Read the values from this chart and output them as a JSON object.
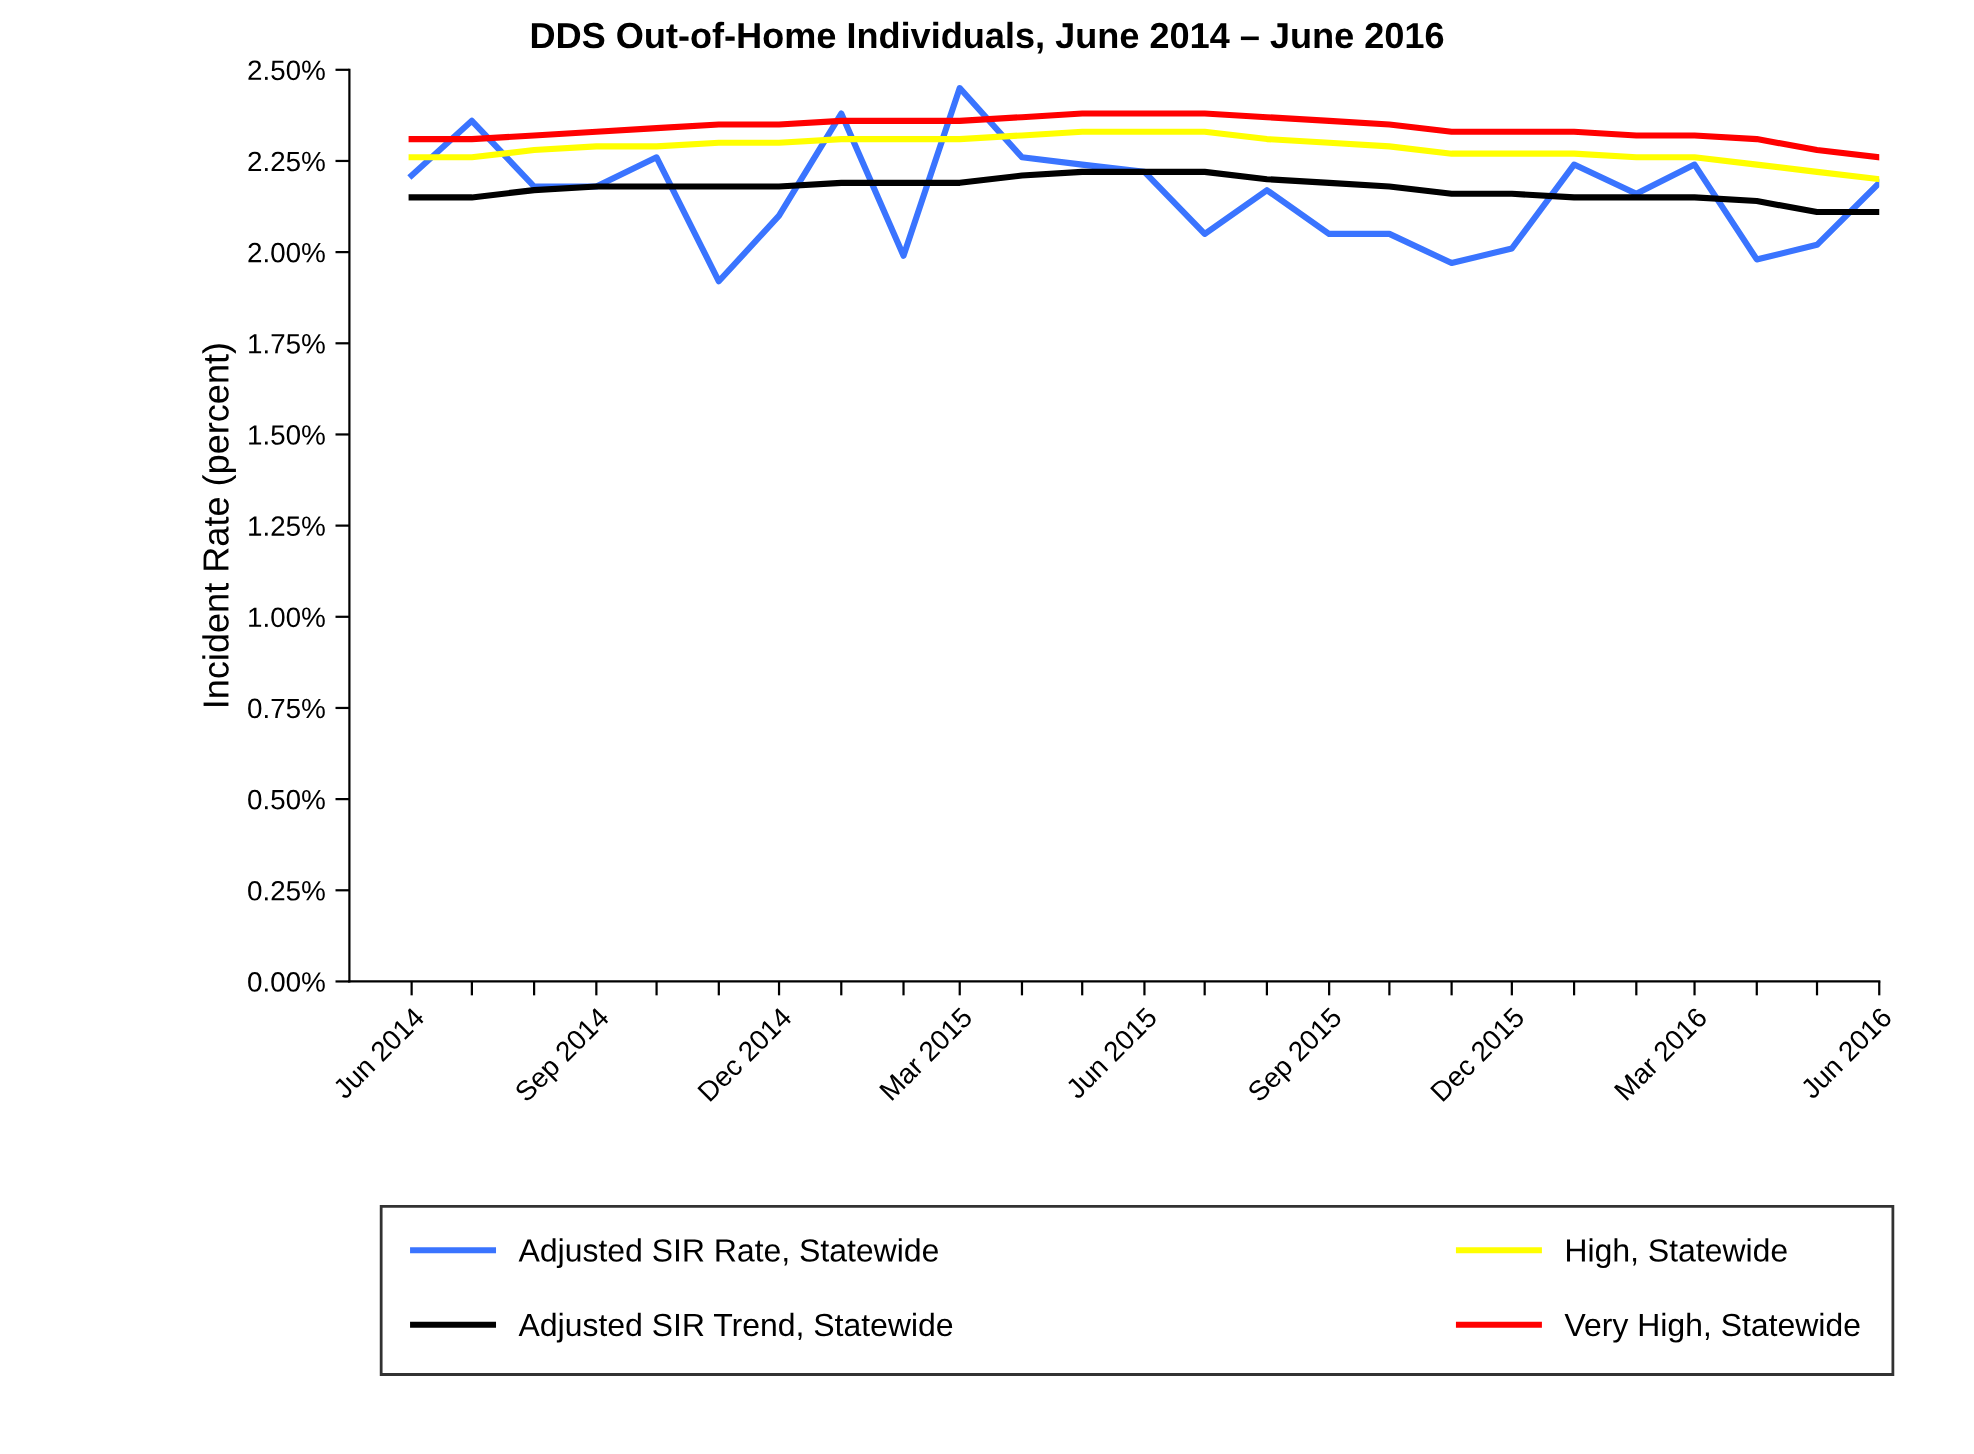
{
  "chart_data": {
    "type": "line",
    "title": "DDS Out-of-Home Individuals, June 2014 – June 2016",
    "ylabel": "Incident Rate (percent)",
    "x": [
      "2014-06",
      "2014-07",
      "2014-08",
      "2014-09",
      "2014-10",
      "2014-11",
      "2014-12",
      "2015-01",
      "2015-02",
      "2015-03",
      "2015-04",
      "2015-05",
      "2015-06",
      "2015-07",
      "2015-08",
      "2015-09",
      "2015-10",
      "2015-11",
      "2015-12",
      "2016-01",
      "2016-02",
      "2016-03",
      "2016-04",
      "2016-05",
      "2016-06"
    ],
    "series": [
      {
        "name": "Adjusted SIR Rate, Statewide",
        "color": "#3a74ff",
        "values": [
          2.21,
          2.36,
          2.18,
          2.18,
          2.26,
          1.92,
          2.1,
          2.38,
          1.99,
          2.45,
          2.26,
          2.24,
          2.22,
          2.05,
          2.17,
          2.05,
          2.05,
          1.97,
          2.01,
          2.24,
          2.16,
          2.24,
          1.98,
          2.02,
          2.19
        ]
      },
      {
        "name": "Adjusted SIR Trend, Statewide",
        "color": "#000000",
        "values": [
          2.15,
          2.15,
          2.17,
          2.18,
          2.18,
          2.18,
          2.18,
          2.19,
          2.19,
          2.19,
          2.21,
          2.22,
          2.22,
          2.22,
          2.2,
          2.19,
          2.18,
          2.16,
          2.16,
          2.15,
          2.15,
          2.15,
          2.14,
          2.11,
          2.11
        ]
      },
      {
        "name": "High, Statewide",
        "color": "#ffff00",
        "values": [
          2.26,
          2.26,
          2.28,
          2.29,
          2.29,
          2.3,
          2.3,
          2.31,
          2.31,
          2.31,
          2.32,
          2.33,
          2.33,
          2.33,
          2.31,
          2.3,
          2.29,
          2.27,
          2.27,
          2.27,
          2.26,
          2.26,
          2.24,
          2.22,
          2.2
        ]
      },
      {
        "name": "Very High, Statewide",
        "color": "#ff0000",
        "values": [
          2.31,
          2.31,
          2.32,
          2.33,
          2.34,
          2.35,
          2.35,
          2.36,
          2.36,
          2.36,
          2.37,
          2.38,
          2.38,
          2.38,
          2.37,
          2.36,
          2.35,
          2.33,
          2.33,
          2.33,
          2.32,
          2.32,
          2.31,
          2.28,
          2.26
        ]
      }
    ],
    "xlim": [
      "2014-05",
      "2016-06"
    ],
    "xticks": [
      {
        "value": "2014-06",
        "label": "Jun 2014"
      },
      {
        "value": "2014-07",
        "label": null
      },
      {
        "value": "2014-08",
        "label": null
      },
      {
        "value": "2014-09",
        "label": "Sep 2014"
      },
      {
        "value": "2014-10",
        "label": null
      },
      {
        "value": "2014-11",
        "label": null
      },
      {
        "value": "2014-12",
        "label": "Dec 2014"
      },
      {
        "value": "2015-01",
        "label": null
      },
      {
        "value": "2015-02",
        "label": null
      },
      {
        "value": "2015-03",
        "label": "Mar 2015"
      },
      {
        "value": "2015-04",
        "label": null
      },
      {
        "value": "2015-05",
        "label": null
      },
      {
        "value": "2015-06",
        "label": "Jun 2015"
      },
      {
        "value": "2015-07",
        "label": null
      },
      {
        "value": "2015-08",
        "label": null
      },
      {
        "value": "2015-09",
        "label": "Sep 2015"
      },
      {
        "value": "2015-10",
        "label": null
      },
      {
        "value": "2015-11",
        "label": null
      },
      {
        "value": "2015-12",
        "label": "Dec 2015"
      },
      {
        "value": "2016-01",
        "label": null
      },
      {
        "value": "2016-02",
        "label": null
      },
      {
        "value": "2016-03",
        "label": "Mar 2016"
      },
      {
        "value": "2016-04",
        "label": null
      },
      {
        "value": "2016-05",
        "label": null
      },
      {
        "value": "2016-06",
        "label": "Jun 2016"
      }
    ],
    "ylim": [
      0,
      2.5
    ],
    "yticks": [
      {
        "value": 0,
        "label": "0.00%"
      },
      {
        "value": 0.25,
        "label": "0.25%"
      },
      {
        "value": 0.5,
        "label": "0.50%"
      },
      {
        "value": 0.75,
        "label": "0.75%"
      },
      {
        "value": 1.0,
        "label": "1.00%"
      },
      {
        "value": 1.25,
        "label": "1.25%"
      },
      {
        "value": 1.5,
        "label": "1.50%"
      },
      {
        "value": 1.75,
        "label": "1.75%"
      },
      {
        "value": 2.0,
        "label": "2.00%"
      },
      {
        "value": 2.25,
        "label": "2.25%"
      },
      {
        "value": 2.5,
        "label": "2.50%"
      }
    ],
    "grid": false,
    "legend": "bottom",
    "marker": "none",
    "line_style": "solid"
  }
}
